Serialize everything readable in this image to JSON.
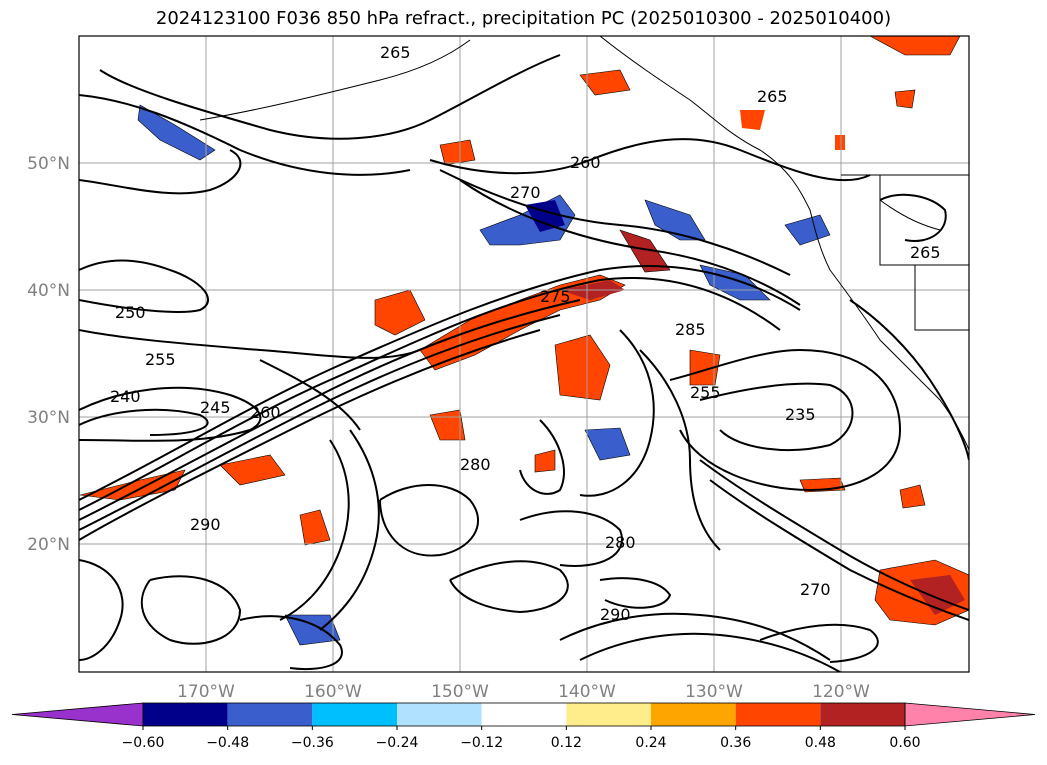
{
  "title": "2024123100 F036 850 hPa refract., precipitation PC (2025010300 - 2025010400)",
  "map": {
    "lat_ticks": [
      "50°N",
      "40°N",
      "30°N",
      "20°N"
    ],
    "lon_ticks": [
      "170°W",
      "160°W",
      "150°W",
      "140°W",
      "130°W",
      "120°W"
    ],
    "contour_labels": [
      "265",
      "260",
      "255",
      "250",
      "270",
      "275",
      "285",
      "240",
      "245",
      "280",
      "290",
      "235",
      "265",
      "260",
      "270",
      "280",
      "290",
      "265",
      "255"
    ]
  },
  "colorbar": {
    "colors": [
      "#9932cc",
      "#00008b",
      "#3a5fcd",
      "#00bfff",
      "#b0e2ff",
      "#ffffff",
      "#ffec8b",
      "#ffa500",
      "#ff4500",
      "#b22222",
      "#ff82ab"
    ],
    "tick_labels": [
      "−0.60",
      "−0.48",
      "−0.36",
      "−0.24",
      "−0.12",
      "0.12",
      "0.24",
      "0.36",
      "0.48",
      "0.60"
    ]
  }
}
